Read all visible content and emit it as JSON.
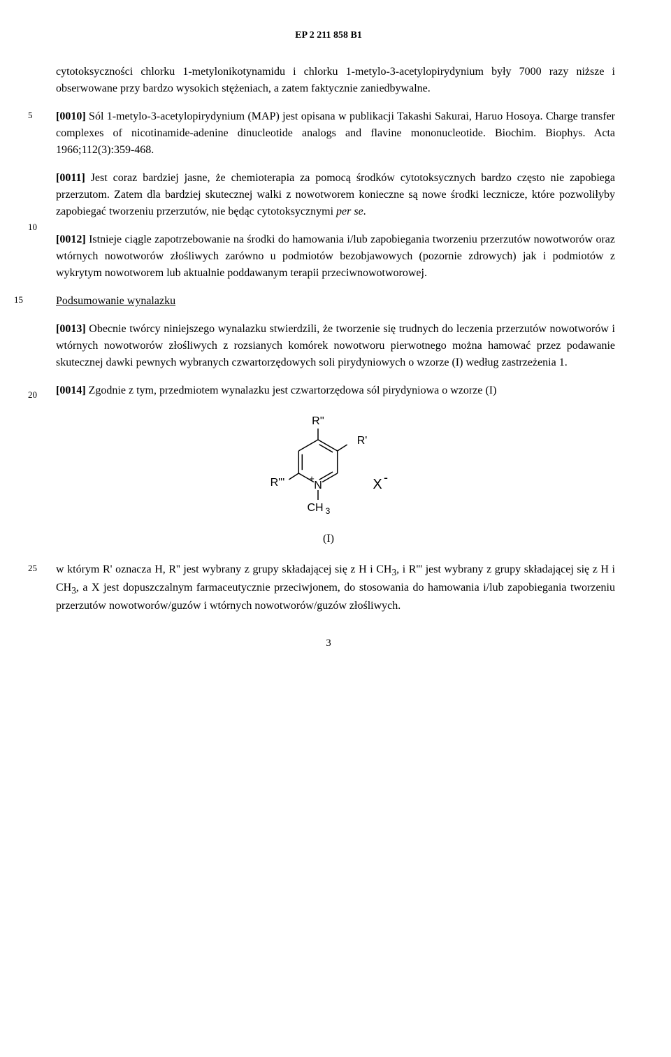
{
  "header": "EP 2 211 858 B1",
  "line_numbers": {
    "n5": "5",
    "n10": "10",
    "n15": "15",
    "n20": "20",
    "n25": "25"
  },
  "paragraphs": {
    "p1": "cytotoksyczności chlorku 1-metylonikotynamidu i chlorku 1-metylo-3-acetylopirydynium były 7000 razy niższe i obserwowane przy bardzo wysokich stężeniach, a zatem faktycznie zaniedbywalne.",
    "p2_a": "[0010] ",
    "p2_b": "Sól 1-metylo-3-acetylopirydynium (MAP) jest opisana w publikacji Takashi Sakurai, Haruo Hosoya. Charge transfer complexes of nicotinamide-adenine dinucleotide analogs and flavine mononucleotide. Biochim. Biophys. Acta 1966;112(3):359-468.",
    "p3_a": "[0011] ",
    "p3_b": "Jest coraz bardziej jasne, że chemioterapia za pomocą środków cytotoksycznych bardzo często nie zapobiega przerzutom. Zatem dla bardziej skutecznej walki z nowotworem konieczne są nowe środki lecznicze, które pozwoliłyby zapobiegać tworzeniu przerzutów, nie będąc cytotoksycznymi ",
    "p3_c": "per se",
    "p3_d": ".",
    "p4_a": "[0012] ",
    "p4_b": "Istnieje ciągle zapotrzebowanie na środki do hamowania i/lub zapobiegania tworzeniu przerzutów nowotworów oraz wtórnych nowotworów złośliwych zarówno u podmiotów bezobjawowych (pozornie zdrowych) jak i podmiotów z wykrytym nowotworem lub aktualnie poddawanym terapii przeciwnowotworowej.",
    "heading": "Podsumowanie wynalazku",
    "p5_a": "[0013] ",
    "p5_b": "Obecnie twórcy niniejszego wynalazku stwierdzili, że tworzenie się trudnych do leczenia przerzutów nowotworów i wtórnych nowotworów złośliwych z rozsianych komórek nowotworu pierwotnego można hamować przez podawanie skutecznej dawki pewnych wybranych czwartorzędowych soli pirydyniowych o wzorze (I) według zastrzeżenia 1.",
    "p6_a": "[0014] ",
    "p6_b": "Zgodnie z tym, przedmiotem wynalazku jest czwartorzędowa sól pirydyniowa o wzorze (I)",
    "formula_label": "(I)",
    "p7_a": "w którym R' oznacza H, R'' jest wybrany z grupy składającej się z H i CH",
    "p7_sub1": "3",
    "p7_b": ", i R''' jest wybrany z grupy składającej się z H i CH",
    "p7_sub2": "3",
    "p7_c": ", a X jest dopuszczalnym farmaceutycznie przeciwjonem, do stosowania do hamowania i/lub zapobiegania tworzeniu przerzutów nowotworów/guzów i wtórnych nowotworów/guzów złośliwych.",
    "page_num": "3"
  },
  "formula": {
    "labels": {
      "r1": "R'",
      "r2": "R''",
      "r3": "R'''",
      "n": "N",
      "plus": "+",
      "x": "X",
      "minus": "-",
      "ch3": "CH",
      "ch3_sub": "3"
    },
    "style": {
      "stroke": "#000000",
      "stroke_width": 1.5,
      "font_family": "Arial, Helvetica, sans-serif",
      "font_size": 16,
      "sub_font_size": 12
    }
  }
}
